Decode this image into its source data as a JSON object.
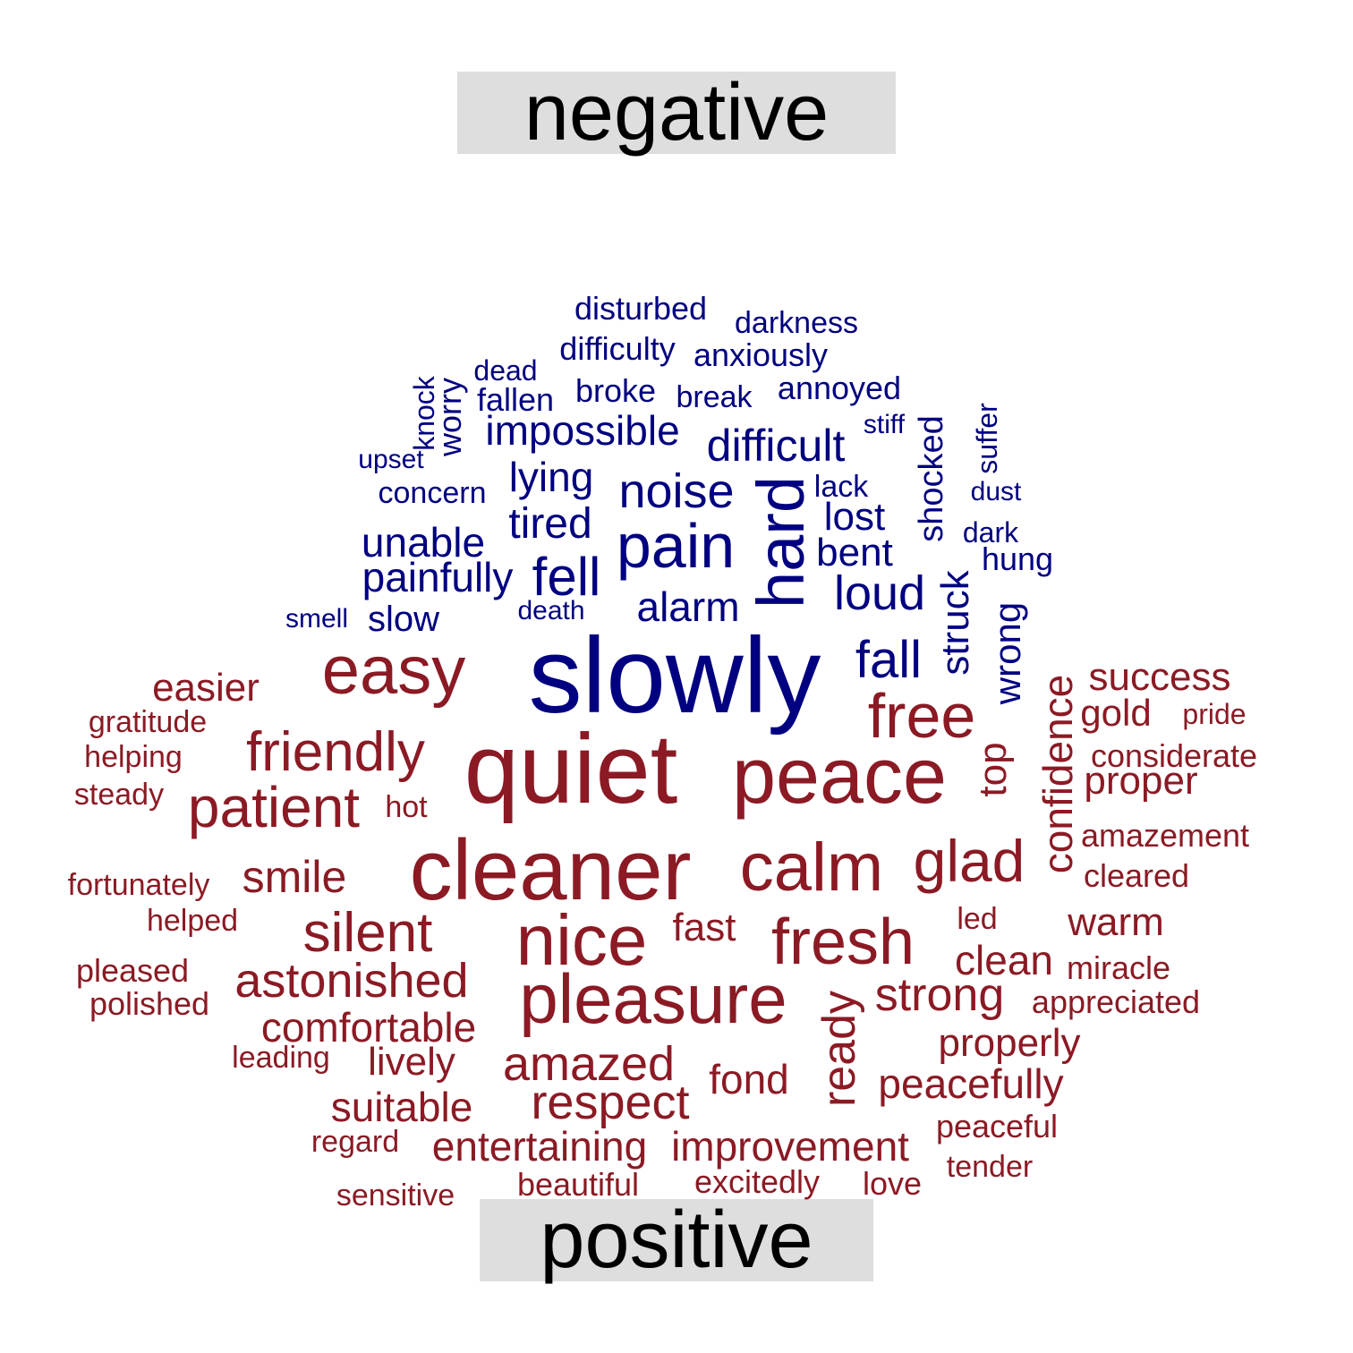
{
  "labels": {
    "negative": "negative",
    "positive": "positive"
  },
  "colors": {
    "negative": "#000080",
    "positive": "#8b1a24",
    "label_background": "#dedede"
  },
  "words": [
    {
      "text": "disturbed",
      "group": "negative"
    },
    {
      "text": "darkness",
      "group": "negative"
    },
    {
      "text": "difficulty",
      "group": "negative"
    },
    {
      "text": "anxiously",
      "group": "negative"
    },
    {
      "text": "dead",
      "group": "negative"
    },
    {
      "text": "knock",
      "group": "negative"
    },
    {
      "text": "worry",
      "group": "negative"
    },
    {
      "text": "fallen",
      "group": "negative"
    },
    {
      "text": "broke",
      "group": "negative"
    },
    {
      "text": "break",
      "group": "negative"
    },
    {
      "text": "annoyed",
      "group": "negative"
    },
    {
      "text": "impossible",
      "group": "negative"
    },
    {
      "text": "stiff",
      "group": "negative"
    },
    {
      "text": "shocked",
      "group": "negative"
    },
    {
      "text": "suffer",
      "group": "negative"
    },
    {
      "text": "upset",
      "group": "negative"
    },
    {
      "text": "difficult",
      "group": "negative"
    },
    {
      "text": "lying",
      "group": "negative"
    },
    {
      "text": "lack",
      "group": "negative"
    },
    {
      "text": "concern",
      "group": "negative"
    },
    {
      "text": "noise",
      "group": "negative"
    },
    {
      "text": "dust",
      "group": "negative"
    },
    {
      "text": "tired",
      "group": "negative"
    },
    {
      "text": "hard",
      "group": "negative"
    },
    {
      "text": "lost",
      "group": "negative"
    },
    {
      "text": "dark",
      "group": "negative"
    },
    {
      "text": "unable",
      "group": "negative"
    },
    {
      "text": "pain",
      "group": "negative"
    },
    {
      "text": "bent",
      "group": "negative"
    },
    {
      "text": "hung",
      "group": "negative"
    },
    {
      "text": "painfully",
      "group": "negative"
    },
    {
      "text": "fell",
      "group": "negative"
    },
    {
      "text": "loud",
      "group": "negative"
    },
    {
      "text": "struck",
      "group": "negative"
    },
    {
      "text": "alarm",
      "group": "negative"
    },
    {
      "text": "smell",
      "group": "negative"
    },
    {
      "text": "slow",
      "group": "negative"
    },
    {
      "text": "death",
      "group": "negative"
    },
    {
      "text": "wrong",
      "group": "negative"
    },
    {
      "text": "slowly",
      "group": "negative"
    },
    {
      "text": "fall",
      "group": "negative"
    },
    {
      "text": "easy",
      "group": "positive"
    },
    {
      "text": "confidence",
      "group": "positive"
    },
    {
      "text": "success",
      "group": "positive"
    },
    {
      "text": "easier",
      "group": "positive"
    },
    {
      "text": "free",
      "group": "positive"
    },
    {
      "text": "gold",
      "group": "positive"
    },
    {
      "text": "pride",
      "group": "positive"
    },
    {
      "text": "gratitude",
      "group": "positive"
    },
    {
      "text": "friendly",
      "group": "positive"
    },
    {
      "text": "helping",
      "group": "positive"
    },
    {
      "text": "quiet",
      "group": "positive"
    },
    {
      "text": "peace",
      "group": "positive"
    },
    {
      "text": "top",
      "group": "positive"
    },
    {
      "text": "considerate",
      "group": "positive"
    },
    {
      "text": "proper",
      "group": "positive"
    },
    {
      "text": "steady",
      "group": "positive"
    },
    {
      "text": "patient",
      "group": "positive"
    },
    {
      "text": "hot",
      "group": "positive"
    },
    {
      "text": "amazement",
      "group": "positive"
    },
    {
      "text": "cleaner",
      "group": "positive"
    },
    {
      "text": "calm",
      "group": "positive"
    },
    {
      "text": "glad",
      "group": "positive"
    },
    {
      "text": "cleared",
      "group": "positive"
    },
    {
      "text": "smile",
      "group": "positive"
    },
    {
      "text": "fortunately",
      "group": "positive"
    },
    {
      "text": "helped",
      "group": "positive"
    },
    {
      "text": "led",
      "group": "positive"
    },
    {
      "text": "warm",
      "group": "positive"
    },
    {
      "text": "silent",
      "group": "positive"
    },
    {
      "text": "fast",
      "group": "positive"
    },
    {
      "text": "nice",
      "group": "positive"
    },
    {
      "text": "fresh",
      "group": "positive"
    },
    {
      "text": "clean",
      "group": "positive"
    },
    {
      "text": "miracle",
      "group": "positive"
    },
    {
      "text": "pleased",
      "group": "positive"
    },
    {
      "text": "astonished",
      "group": "positive"
    },
    {
      "text": "polished",
      "group": "positive"
    },
    {
      "text": "pleasure",
      "group": "positive"
    },
    {
      "text": "ready",
      "group": "positive"
    },
    {
      "text": "strong",
      "group": "positive"
    },
    {
      "text": "appreciated",
      "group": "positive"
    },
    {
      "text": "comfortable",
      "group": "positive"
    },
    {
      "text": "properly",
      "group": "positive"
    },
    {
      "text": "leading",
      "group": "positive"
    },
    {
      "text": "lively",
      "group": "positive"
    },
    {
      "text": "amazed",
      "group": "positive"
    },
    {
      "text": "fond",
      "group": "positive"
    },
    {
      "text": "peacefully",
      "group": "positive"
    },
    {
      "text": "suitable",
      "group": "positive"
    },
    {
      "text": "respect",
      "group": "positive"
    },
    {
      "text": "peaceful",
      "group": "positive"
    },
    {
      "text": "regard",
      "group": "positive"
    },
    {
      "text": "entertaining",
      "group": "positive"
    },
    {
      "text": "improvement",
      "group": "positive"
    },
    {
      "text": "tender",
      "group": "positive"
    },
    {
      "text": "sensitive",
      "group": "positive"
    },
    {
      "text": "beautiful",
      "group": "positive"
    },
    {
      "text": "excitedly",
      "group": "positive"
    },
    {
      "text": "love",
      "group": "positive"
    }
  ]
}
